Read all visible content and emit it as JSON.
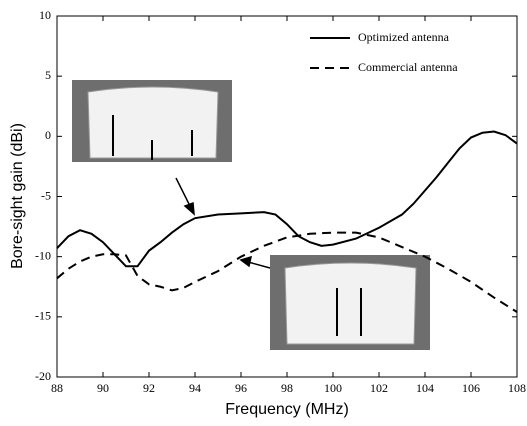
{
  "chart_data": {
    "type": "line",
    "xlabel": "Frequency (MHz)",
    "ylabel": "Bore-sight gain (dBi)",
    "xlim": [
      88,
      108
    ],
    "ylim": [
      -20,
      10
    ],
    "xticks": [
      88,
      90,
      92,
      94,
      96,
      98,
      100,
      102,
      104,
      106,
      108
    ],
    "yticks": [
      -20,
      -15,
      -10,
      -5,
      0,
      5,
      10
    ],
    "legend": "upper right",
    "series": [
      {
        "name": "Optimized antenna",
        "color": "#000000",
        "line_style": "solid",
        "x": [
          88,
          88.5,
          89,
          89.5,
          90,
          90.5,
          91,
          91.5,
          92,
          92.5,
          93,
          93.5,
          94,
          95,
          96,
          97,
          97.5,
          98,
          98.5,
          99,
          99.5,
          100,
          101,
          102,
          103,
          103.5,
          104,
          104.5,
          105,
          105.5,
          106,
          106.5,
          107,
          107.5,
          108
        ],
        "values": [
          -9.3,
          -8.3,
          -7.8,
          -8.1,
          -8.8,
          -9.8,
          -10.8,
          -10.8,
          -9.5,
          -8.8,
          -8.0,
          -7.3,
          -6.8,
          -6.5,
          -6.4,
          -6.3,
          -6.5,
          -7.3,
          -8.3,
          -8.8,
          -9.1,
          -9.0,
          -8.5,
          -7.6,
          -6.5,
          -5.6,
          -4.5,
          -3.4,
          -2.2,
          -1.0,
          -0.1,
          0.3,
          0.4,
          0.1,
          -0.6
        ]
      },
      {
        "name": "Commercial antenna",
        "color": "#000000",
        "line_style": "dashed",
        "x": [
          88,
          88.5,
          89,
          89.5,
          90,
          90.5,
          91,
          91.5,
          92,
          92.5,
          93,
          93.5,
          94,
          95,
          96,
          97,
          98,
          99,
          100,
          101,
          102,
          103,
          104,
          105,
          106,
          107,
          108
        ],
        "values": [
          -11.8,
          -11.0,
          -10.4,
          -10.0,
          -9.8,
          -9.8,
          -9.9,
          -11.6,
          -12.3,
          -12.5,
          -12.8,
          -12.6,
          -12.1,
          -11.2,
          -10.0,
          -9.1,
          -8.4,
          -8.1,
          -8.0,
          -8.0,
          -8.4,
          -9.2,
          -10.0,
          -11.0,
          -12.1,
          -13.4,
          -14.6
        ]
      }
    ]
  }
}
